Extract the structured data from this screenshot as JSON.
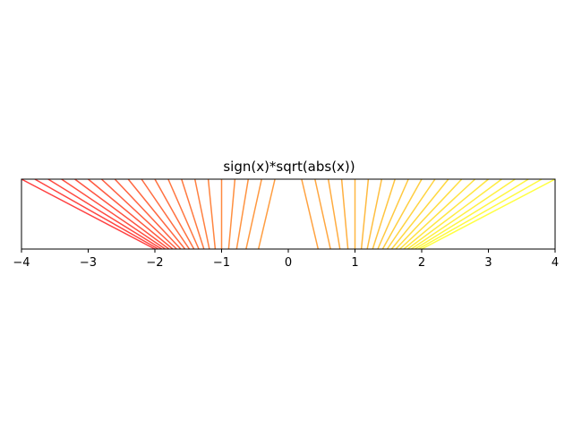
{
  "chart_data": {
    "type": "line",
    "title": "sign(x)*sqrt(abs(x))",
    "xlabel": "",
    "ylabel": "",
    "xlim": [
      -4,
      4
    ],
    "ylim": [
      0,
      1
    ],
    "xticks": [
      -4,
      -3,
      -2,
      -1,
      0,
      1,
      2,
      3,
      4
    ],
    "xtick_labels": [
      "−4",
      "−3",
      "−2",
      "−1",
      "0",
      "1",
      "2",
      "3",
      "4"
    ],
    "yticks": [],
    "grid": false,
    "legend": "none",
    "description": "Each line connects the original value x (top) to sign(x)*sqrt(abs(x)) (bottom); x evenly spaced from -4 to 4.",
    "top_x": [
      -4.0,
      -3.8,
      -3.6,
      -3.4,
      -3.2,
      -3.0,
      -2.8,
      -2.6,
      -2.4,
      -2.2,
      -2.0,
      -1.8,
      -1.6,
      -1.4,
      -1.2,
      -1.0,
      -0.8,
      -0.6,
      -0.4,
      -0.2,
      0.2,
      0.4,
      0.6,
      0.8,
      1.0,
      1.2,
      1.4,
      1.6,
      1.8,
      2.0,
      2.2,
      2.4,
      2.6,
      2.8,
      3.0,
      3.2,
      3.4,
      3.6,
      3.8,
      4.0
    ],
    "top_y": 1,
    "bottom_y": 0,
    "colormap": "autumn",
    "color_low": "#ff0000",
    "color_high": "#ffff00",
    "line_alpha": 0.75
  }
}
